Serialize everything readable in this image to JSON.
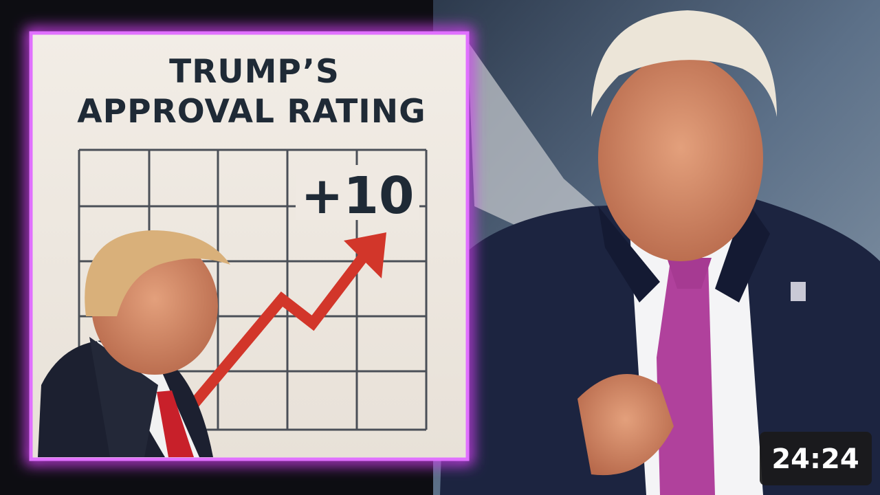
{
  "panel": {
    "title_line_1": "TRUMP’S",
    "title_line_2": "APPROVAL RATING",
    "change": "+10"
  },
  "badge": {
    "duration": "24:24"
  }
}
